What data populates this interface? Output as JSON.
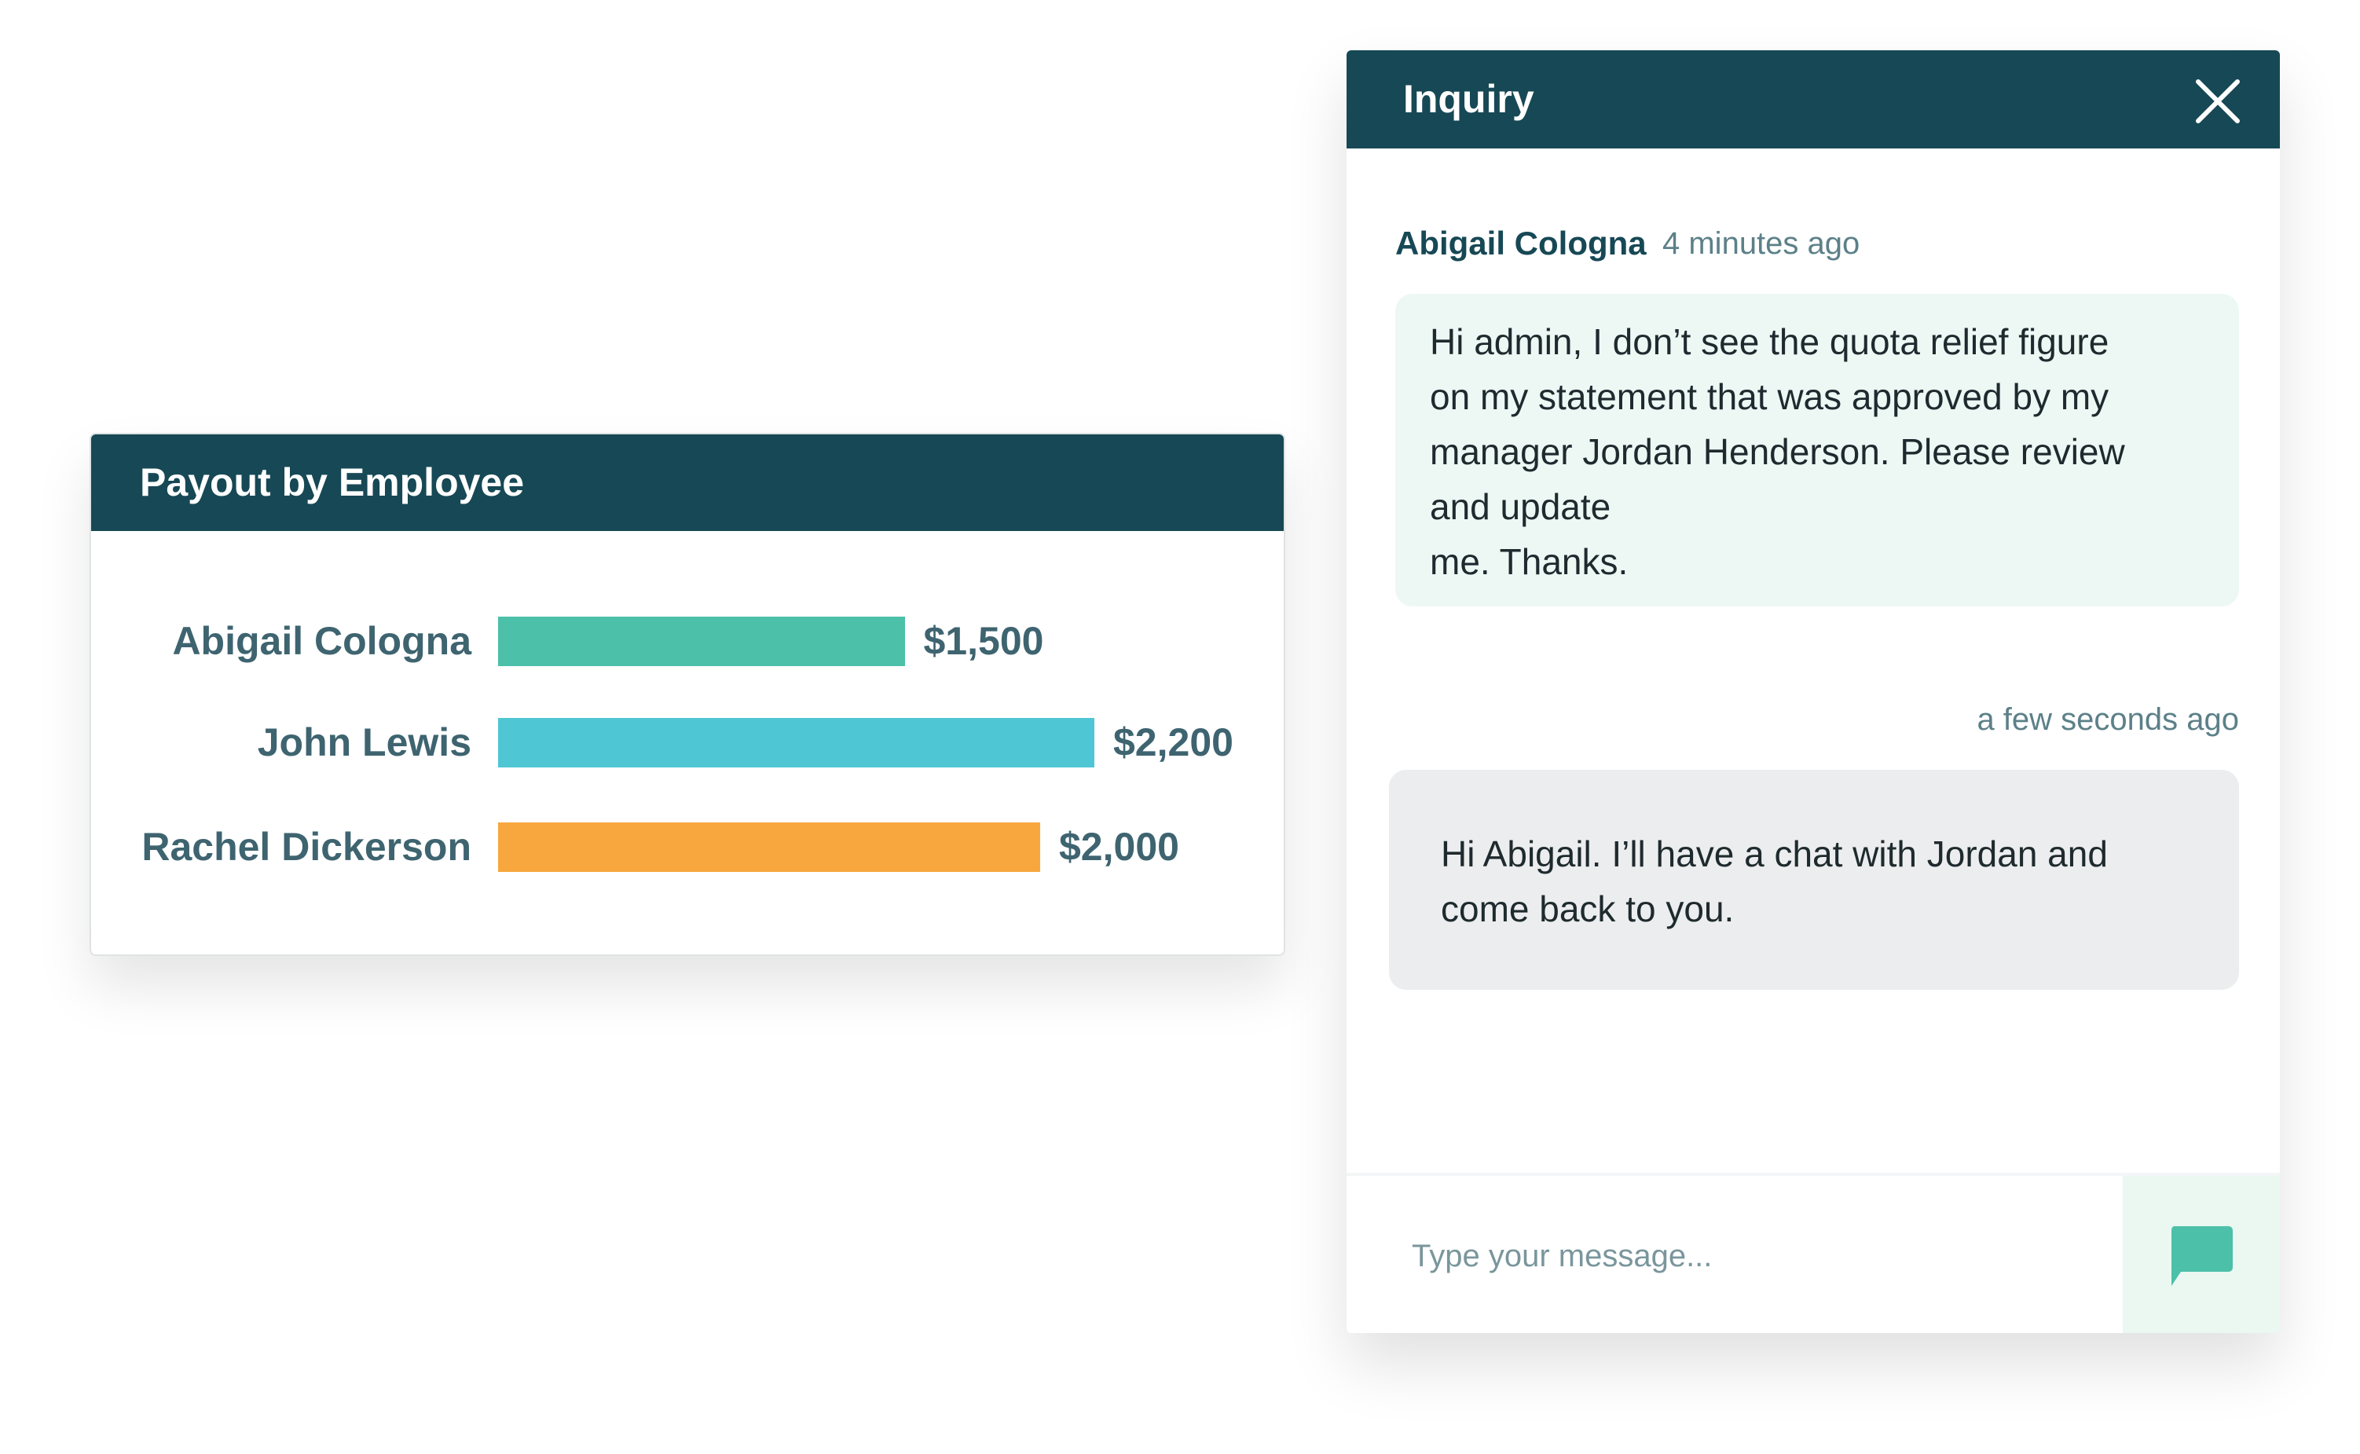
{
  "payout_card": {
    "title": "Payout by Employee",
    "chart_data": {
      "type": "bar",
      "orientation": "horizontal",
      "categories": [
        "Abigail Cologna",
        "John Lewis",
        "Rachel Dickerson"
      ],
      "values": [
        1500,
        2200,
        2000
      ],
      "value_labels": [
        "$1,500",
        "$2,200",
        "$2,000"
      ],
      "colors": [
        "#4cc0a9",
        "#4fc6d3",
        "#f8a73e"
      ]
    }
  },
  "chat": {
    "title": "Inquiry",
    "close_icon": "close-icon",
    "messages": [
      {
        "sender": "Abigail Cologna",
        "time": "4 minutes ago",
        "text_lines": [
          "Hi admin, I don’t see the quota relief figure",
          "on my statement that was approved by my",
          "manager Jordan Henderson. Please review",
          "and update",
          "me. Thanks."
        ]
      },
      {
        "sender": "",
        "time": "a few seconds ago",
        "text_lines": [
          "Hi Abigail. I’ll have a chat with Jordan and",
          "come back to you."
        ]
      }
    ],
    "input": {
      "value": "",
      "placeholder": "Type your message..."
    },
    "send_icon": "chat-bubble-icon",
    "colors": {
      "header": "#174855",
      "accent": "#4cc0a9",
      "incoming_bubble": "#edf8f5",
      "outgoing_bubble": "#ecedee"
    }
  }
}
